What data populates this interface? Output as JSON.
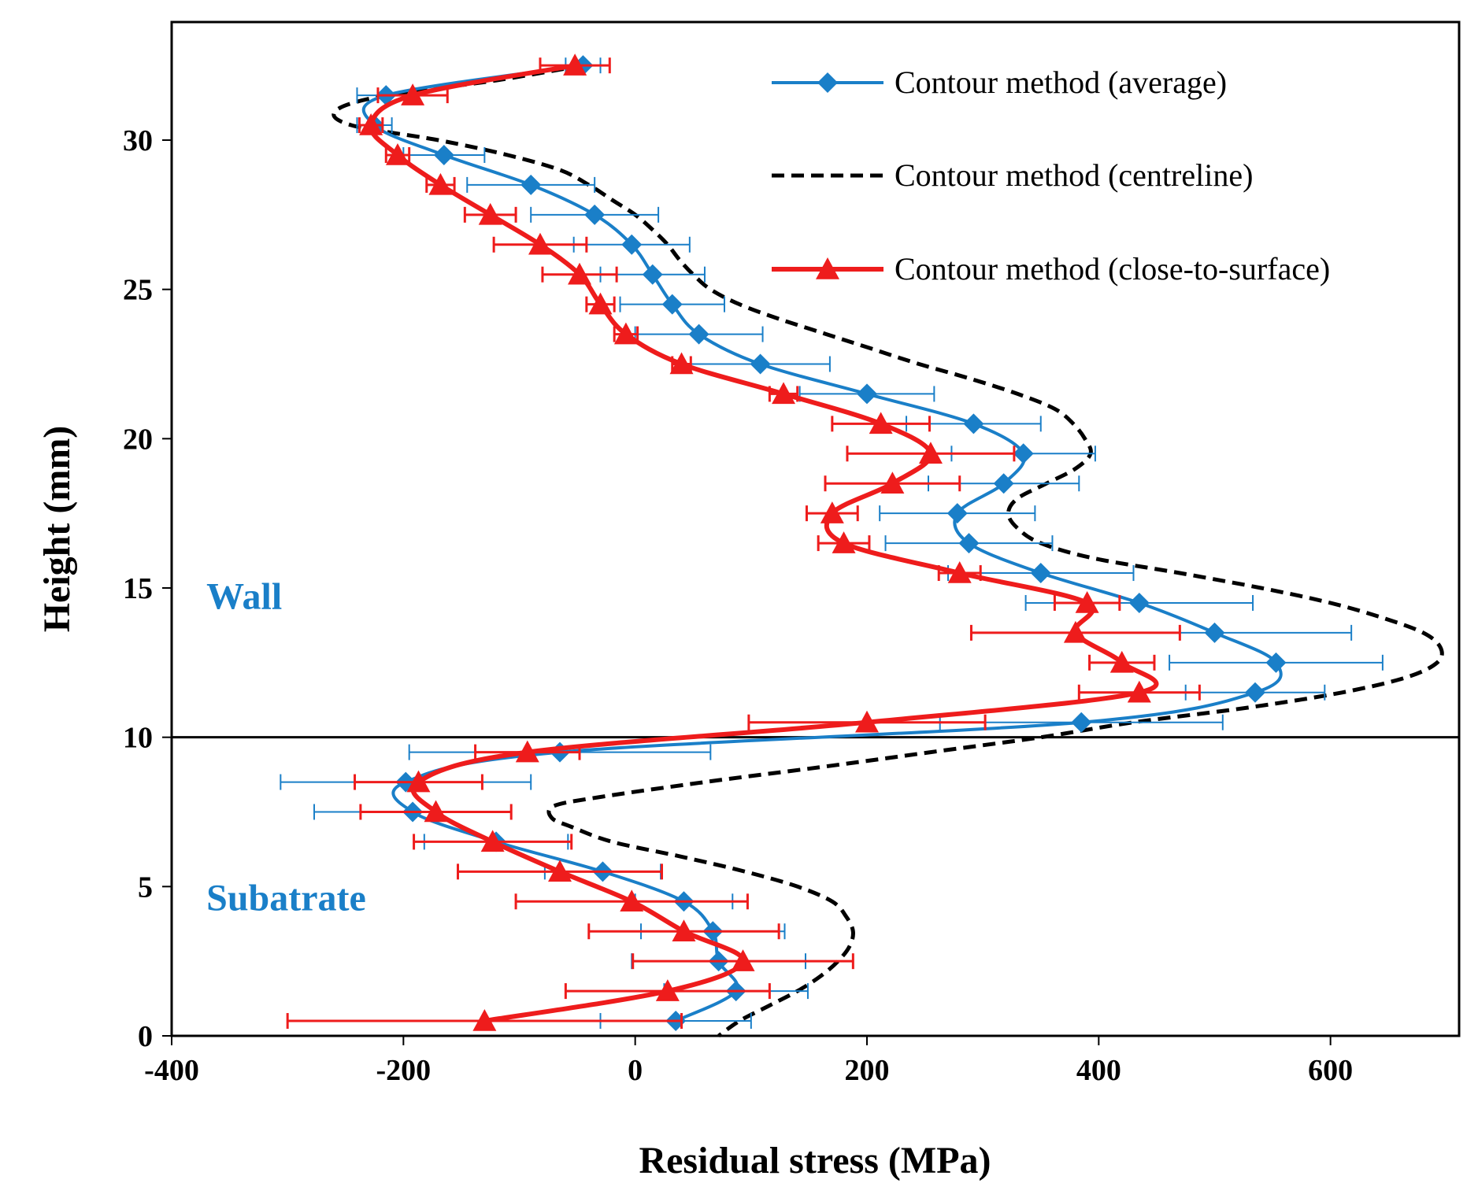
{
  "chart_data": {
    "type": "line",
    "xlabel": "Residual stress (MPa)",
    "ylabel": "Height (mm)",
    "xlim": [
      -400,
      750
    ],
    "ylim": [
      0,
      34
    ],
    "xticks": [
      -400,
      -200,
      0,
      200,
      400,
      600
    ],
    "yticks": [
      0,
      5,
      10,
      15,
      20,
      25,
      30
    ],
    "xtick_labels": [
      "-400",
      "-200",
      "0",
      "200",
      "400",
      "600"
    ],
    "ytick_labels": [
      "0",
      "5",
      "10",
      "15",
      "20",
      "25",
      "30"
    ],
    "legend_position": "top-right",
    "reference_line": {
      "y": 10
    },
    "annotations": [
      {
        "text": "Wall",
        "x": -370,
        "y": 14.3,
        "color": "#1a7fc8"
      },
      {
        "text": "Subatrate",
        "x": -370,
        "y": 4.2,
        "color": "#1a7fc8"
      }
    ],
    "series": [
      {
        "name": "Contour method (average)",
        "color": "#1a7fc8",
        "marker": "diamond",
        "dashed": false,
        "points": [
          {
            "y": 32.5,
            "x": -45,
            "err": 15
          },
          {
            "y": 31.5,
            "x": -215,
            "err": 25
          },
          {
            "y": 30.5,
            "x": -225,
            "err": 15
          },
          {
            "y": 29.5,
            "x": -165,
            "err": 35
          },
          {
            "y": 28.5,
            "x": -90,
            "err": 55
          },
          {
            "y": 27.5,
            "x": -35,
            "err": 55
          },
          {
            "y": 26.5,
            "x": -3,
            "err": 50
          },
          {
            "y": 25.5,
            "x": 15,
            "err": 45
          },
          {
            "y": 24.5,
            "x": 32,
            "err": 45
          },
          {
            "y": 23.5,
            "x": 55,
            "err": 55
          },
          {
            "y": 22.5,
            "x": 108,
            "err": 60
          },
          {
            "y": 21.5,
            "x": 200,
            "err": 58
          },
          {
            "y": 20.5,
            "x": 292,
            "err": 58
          },
          {
            "y": 19.5,
            "x": 335,
            "err": 62
          },
          {
            "y": 18.5,
            "x": 318,
            "err": 65
          },
          {
            "y": 17.5,
            "x": 278,
            "err": 67
          },
          {
            "y": 16.5,
            "x": 288,
            "err": 72
          },
          {
            "y": 15.5,
            "x": 350,
            "err": 80
          },
          {
            "y": 14.5,
            "x": 435,
            "err": 98
          },
          {
            "y": 13.5,
            "x": 500,
            "err": 118
          },
          {
            "y": 12.5,
            "x": 553,
            "err": 92
          },
          {
            "y": 11.5,
            "x": 535,
            "err": 60
          },
          {
            "y": 10.5,
            "x": 385,
            "err": 122
          },
          {
            "y": 9.5,
            "x": -65,
            "err": 130
          },
          {
            "y": 8.5,
            "x": -198,
            "err": 108
          },
          {
            "y": 7.5,
            "x": -192,
            "err": 85
          },
          {
            "y": 6.5,
            "x": -120,
            "err": 62
          },
          {
            "y": 5.5,
            "x": -28,
            "err": 50
          },
          {
            "y": 4.5,
            "x": 42,
            "err": 42
          },
          {
            "y": 3.5,
            "x": 67,
            "err": 62
          },
          {
            "y": 2.5,
            "x": 72,
            "err": 75
          },
          {
            "y": 1.5,
            "x": 87,
            "err": 62
          },
          {
            "y": 0.5,
            "x": 35,
            "err": 65
          }
        ]
      },
      {
        "name": "Contour method (centreline)",
        "color": "#000000",
        "marker": "none",
        "dashed": true,
        "points": [
          {
            "y": 32.5,
            "x": -45
          },
          {
            "y": 32.0,
            "x": -120
          },
          {
            "y": 31.5,
            "x": -215
          },
          {
            "y": 31.0,
            "x": -258
          },
          {
            "y": 30.5,
            "x": -245
          },
          {
            "y": 30.0,
            "x": -170
          },
          {
            "y": 29.5,
            "x": -110
          },
          {
            "y": 29.0,
            "x": -65
          },
          {
            "y": 28.5,
            "x": -40
          },
          {
            "y": 28.0,
            "x": -20
          },
          {
            "y": 27.5,
            "x": 0
          },
          {
            "y": 27.0,
            "x": 15
          },
          {
            "y": 26.5,
            "x": 28
          },
          {
            "y": 26.0,
            "x": 38
          },
          {
            "y": 25.5,
            "x": 50
          },
          {
            "y": 25.0,
            "x": 65
          },
          {
            "y": 24.5,
            "x": 90
          },
          {
            "y": 24.0,
            "x": 125
          },
          {
            "y": 23.5,
            "x": 165
          },
          {
            "y": 23.0,
            "x": 205
          },
          {
            "y": 22.5,
            "x": 245
          },
          {
            "y": 22.0,
            "x": 290
          },
          {
            "y": 21.5,
            "x": 330
          },
          {
            "y": 21.0,
            "x": 362
          },
          {
            "y": 20.5,
            "x": 378
          },
          {
            "y": 20.0,
            "x": 388
          },
          {
            "y": 19.5,
            "x": 393
          },
          {
            "y": 19.0,
            "x": 380
          },
          {
            "y": 18.5,
            "x": 355
          },
          {
            "y": 18.0,
            "x": 330
          },
          {
            "y": 17.5,
            "x": 322
          },
          {
            "y": 17.0,
            "x": 330
          },
          {
            "y": 16.5,
            "x": 350
          },
          {
            "y": 16.0,
            "x": 395
          },
          {
            "y": 15.5,
            "x": 470
          },
          {
            "y": 15.0,
            "x": 540
          },
          {
            "y": 14.5,
            "x": 600
          },
          {
            "y": 14.0,
            "x": 645
          },
          {
            "y": 13.5,
            "x": 680
          },
          {
            "y": 13.0,
            "x": 695
          },
          {
            "y": 12.5,
            "x": 692
          },
          {
            "y": 12.0,
            "x": 665
          },
          {
            "y": 11.5,
            "x": 610
          },
          {
            "y": 11.0,
            "x": 530
          },
          {
            "y": 10.5,
            "x": 430
          },
          {
            "y": 10.0,
            "x": 350
          },
          {
            "y": 9.5,
            "x": 255
          },
          {
            "y": 9.0,
            "x": 160
          },
          {
            "y": 8.5,
            "x": 60
          },
          {
            "y": 8.0,
            "x": -30
          },
          {
            "y": 7.7,
            "x": -70
          },
          {
            "y": 7.3,
            "x": -72
          },
          {
            "y": 7.0,
            "x": -55
          },
          {
            "y": 6.5,
            "x": -20
          },
          {
            "y": 6.0,
            "x": 40
          },
          {
            "y": 5.5,
            "x": 95
          },
          {
            "y": 5.0,
            "x": 140
          },
          {
            "y": 4.5,
            "x": 170
          },
          {
            "y": 4.0,
            "x": 182
          },
          {
            "y": 3.5,
            "x": 188
          },
          {
            "y": 3.0,
            "x": 185
          },
          {
            "y": 2.5,
            "x": 175
          },
          {
            "y": 2.0,
            "x": 160
          },
          {
            "y": 1.5,
            "x": 140
          },
          {
            "y": 1.0,
            "x": 115
          },
          {
            "y": 0.5,
            "x": 90
          },
          {
            "y": 0.0,
            "x": 72
          }
        ]
      },
      {
        "name": "Contour method (close-to-surface)",
        "color": "#ee1c1c",
        "marker": "triangle",
        "dashed": false,
        "points": [
          {
            "y": 32.5,
            "x": -52,
            "err": 30
          },
          {
            "y": 31.5,
            "x": -192,
            "err": 30
          },
          {
            "y": 30.5,
            "x": -228,
            "err": 10
          },
          {
            "y": 29.5,
            "x": -205,
            "err": 10
          },
          {
            "y": 28.5,
            "x": -168,
            "err": 12
          },
          {
            "y": 27.5,
            "x": -125,
            "err": 22
          },
          {
            "y": 26.5,
            "x": -82,
            "err": 40
          },
          {
            "y": 25.5,
            "x": -48,
            "err": 32
          },
          {
            "y": 24.5,
            "x": -30,
            "err": 12
          },
          {
            "y": 23.5,
            "x": -8,
            "err": 10
          },
          {
            "y": 22.5,
            "x": 40,
            "err": 8
          },
          {
            "y": 21.5,
            "x": 128,
            "err": 12
          },
          {
            "y": 20.5,
            "x": 212,
            "err": 42
          },
          {
            "y": 19.5,
            "x": 255,
            "err": 72
          },
          {
            "y": 18.5,
            "x": 222,
            "err": 58
          },
          {
            "y": 17.5,
            "x": 170,
            "err": 22
          },
          {
            "y": 16.5,
            "x": 180,
            "err": 22
          },
          {
            "y": 15.5,
            "x": 280,
            "err": 18
          },
          {
            "y": 14.5,
            "x": 390,
            "err": 28
          },
          {
            "y": 13.5,
            "x": 380,
            "err": 90
          },
          {
            "y": 12.5,
            "x": 420,
            "err": 28
          },
          {
            "y": 11.5,
            "x": 435,
            "err": 52
          },
          {
            "y": 10.5,
            "x": 200,
            "err": 102
          },
          {
            "y": 9.5,
            "x": -93,
            "err": 45
          },
          {
            "y": 8.5,
            "x": -187,
            "err": 55
          },
          {
            "y": 7.5,
            "x": -172,
            "err": 65
          },
          {
            "y": 6.5,
            "x": -123,
            "err": 68
          },
          {
            "y": 5.5,
            "x": -65,
            "err": 88
          },
          {
            "y": 4.5,
            "x": -3,
            "err": 100
          },
          {
            "y": 3.5,
            "x": 42,
            "err": 82
          },
          {
            "y": 2.5,
            "x": 93,
            "err": 95
          },
          {
            "y": 1.5,
            "x": 28,
            "err": 88
          },
          {
            "y": 0.5,
            "x": -130,
            "err": 170
          }
        ]
      }
    ]
  }
}
